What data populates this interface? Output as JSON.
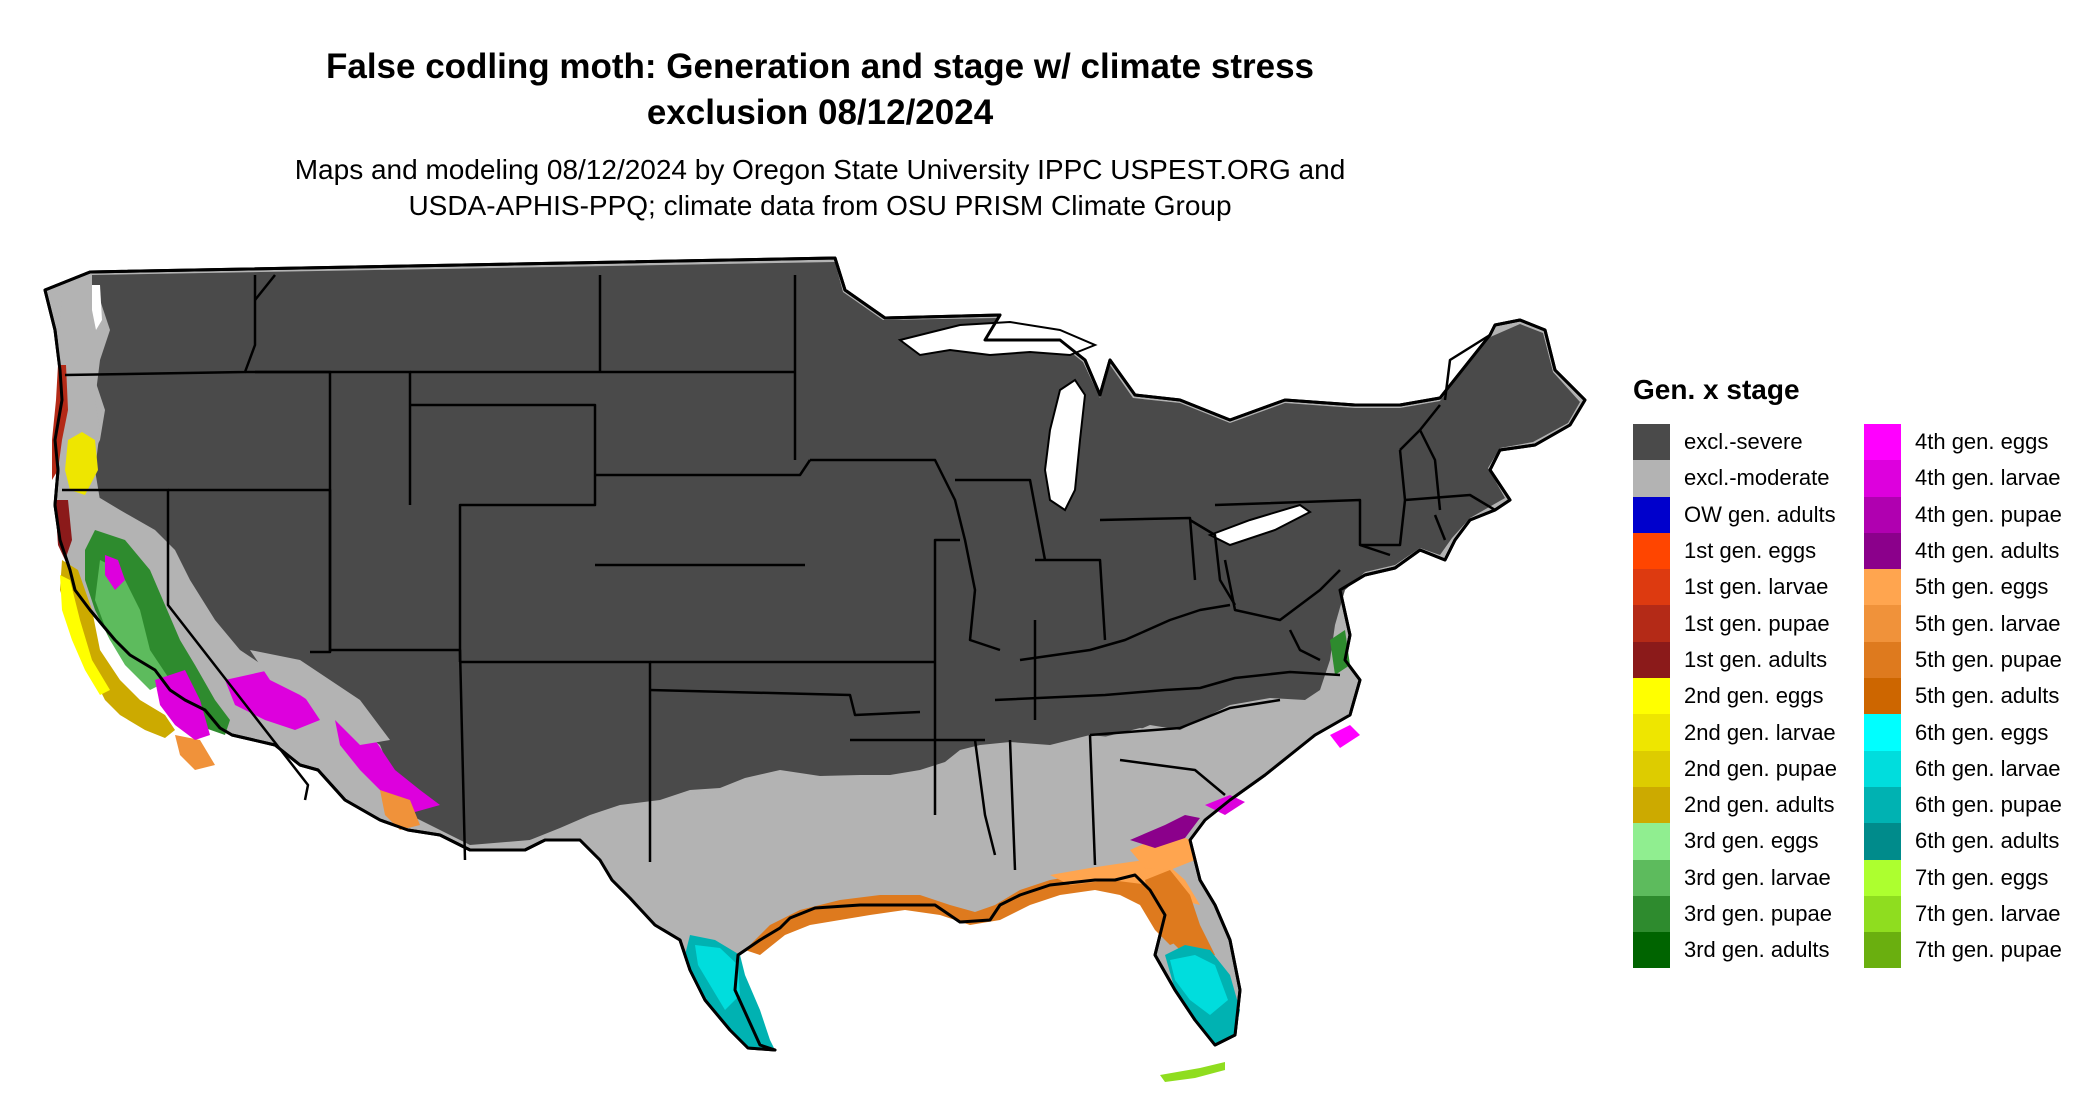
{
  "map": {
    "title_line1": "False codling moth: Generation and stage w/ climate stress",
    "title_line2": "exclusion 08/12/2024",
    "subtitle_line1": "Maps and modeling 08/12/2024 by Oregon State University IPPC USPEST.ORG and",
    "subtitle_line2": "USDA-APHIS-PPQ; climate data from OSU PRISM Climate Group",
    "region": "Contiguous United States"
  },
  "legend": {
    "title": "Gen. x stage",
    "columns": [
      [
        {
          "label": "excl.-severe",
          "color": "#4a4a4a"
        },
        {
          "label": "excl.-moderate",
          "color": "#b3b3b3"
        },
        {
          "label": "OW gen. adults",
          "color": "#0000cc"
        },
        {
          "label": "1st gen. eggs",
          "color": "#ff4500"
        },
        {
          "label": "1st gen. larvae",
          "color": "#dd3a10"
        },
        {
          "label": "1st gen. pupae",
          "color": "#b42a17"
        },
        {
          "label": "1st gen. adults",
          "color": "#8b1a1a"
        },
        {
          "label": "2nd gen. eggs",
          "color": "#ffff00"
        },
        {
          "label": "2nd gen. larvae",
          "color": "#eee600"
        },
        {
          "label": "2nd gen. pupae",
          "color": "#ddcc00"
        },
        {
          "label": "2nd gen. adults",
          "color": "#ccaa00"
        },
        {
          "label": "3rd gen. eggs",
          "color": "#90ee90"
        },
        {
          "label": "3rd gen. larvae",
          "color": "#5dbb5d"
        },
        {
          "label": "3rd gen. pupae",
          "color": "#2e8b2e"
        },
        {
          "label": "3rd gen. adults",
          "color": "#006400"
        }
      ],
      [
        {
          "label": "4th gen. eggs",
          "color": "#ff00ff"
        },
        {
          "label": "4th gen. larvae",
          "color": "#dd00dd"
        },
        {
          "label": "4th gen. pupae",
          "color": "#b000b0"
        },
        {
          "label": "4th gen. adults",
          "color": "#8b008b"
        },
        {
          "label": "5th gen. eggs",
          "color": "#ffa54f"
        },
        {
          "label": "5th gen. larvae",
          "color": "#f0923a"
        },
        {
          "label": "5th gen. pupae",
          "color": "#de7a1e"
        },
        {
          "label": "5th gen. adults",
          "color": "#cd6600"
        },
        {
          "label": "6th gen. eggs",
          "color": "#00ffff"
        },
        {
          "label": "6th gen. larvae",
          "color": "#00dddd"
        },
        {
          "label": "6th gen. pupae",
          "color": "#00b2b2"
        },
        {
          "label": "6th gen. adults",
          "color": "#008b8b"
        },
        {
          "label": "7th gen. eggs",
          "color": "#adff2f"
        },
        {
          "label": "7th gen. larvae",
          "color": "#8fdd1f"
        },
        {
          "label": "7th gen. pupae",
          "color": "#6aaf0f"
        }
      ]
    ]
  }
}
